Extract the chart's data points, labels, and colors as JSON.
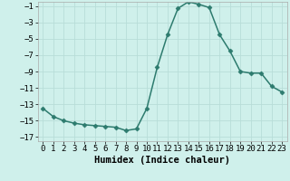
{
  "x": [
    0,
    1,
    2,
    3,
    4,
    5,
    6,
    7,
    8,
    9,
    10,
    11,
    12,
    13,
    14,
    15,
    16,
    17,
    18,
    19,
    20,
    21,
    22,
    23
  ],
  "y": [
    -13.5,
    -14.5,
    -15.0,
    -15.3,
    -15.5,
    -15.6,
    -15.7,
    -15.8,
    -16.2,
    -16.0,
    -13.5,
    -8.5,
    -4.5,
    -1.3,
    -0.5,
    -0.8,
    -1.2,
    -4.5,
    -6.5,
    -9.0,
    -9.2,
    -9.2,
    -10.8,
    -11.5
  ],
  "line_color": "#2d7b6e",
  "marker": "D",
  "marker_size": 2.5,
  "xlabel": "Humidex (Indice chaleur)",
  "xlim": [
    -0.5,
    23.5
  ],
  "ylim": [
    -17.5,
    -0.5
  ],
  "yticks": [
    -1,
    -3,
    -5,
    -7,
    -9,
    -11,
    -13,
    -15,
    -17
  ],
  "xticks": [
    0,
    1,
    2,
    3,
    4,
    5,
    6,
    7,
    8,
    9,
    10,
    11,
    12,
    13,
    14,
    15,
    16,
    17,
    18,
    19,
    20,
    21,
    22,
    23
  ],
  "bg_color": "#cff0eb",
  "grid_color": "#b8ddd8",
  "tick_label_fontsize": 6.5,
  "xlabel_fontsize": 7.5,
  "line_width": 1.1
}
